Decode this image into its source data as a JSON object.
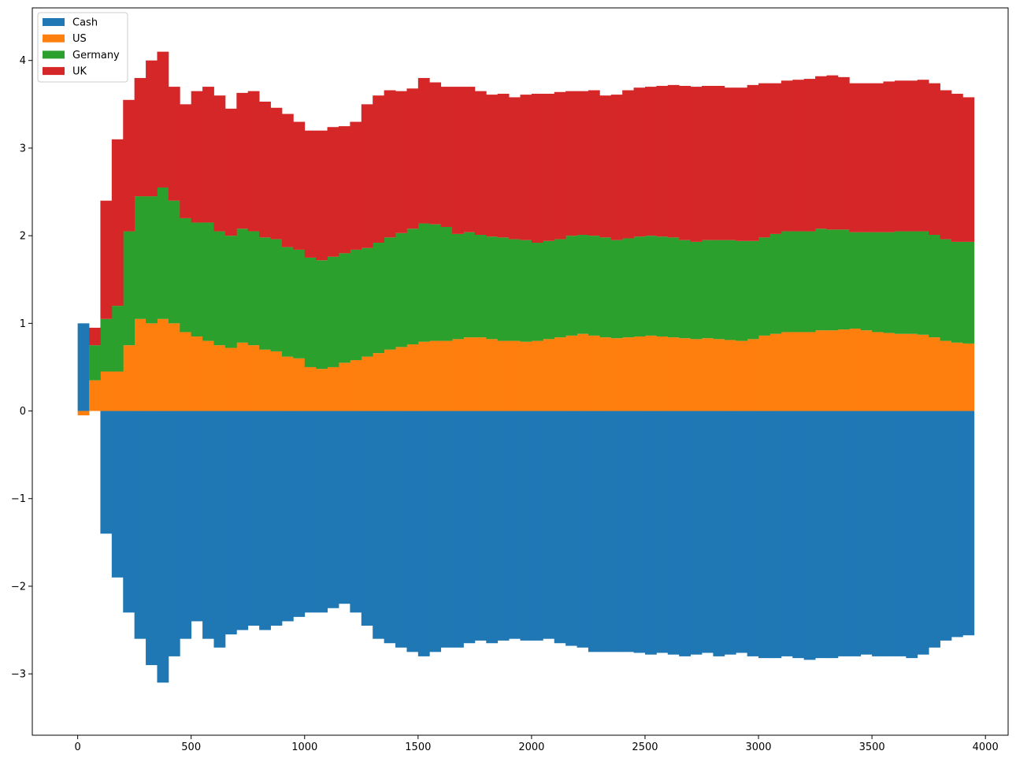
{
  "chart_data": {
    "type": "area",
    "subtype": "stacked bar chart (positive and negative stacks)",
    "title": "",
    "xlabel": "",
    "ylabel": "",
    "xlim": [
      -200,
      4100
    ],
    "ylim": [
      -3.7,
      4.6
    ],
    "x_ticks": [
      0,
      500,
      1000,
      1500,
      2000,
      2500,
      3000,
      3500,
      4000
    ],
    "y_ticks": [
      -3,
      -2,
      -1,
      0,
      1,
      2,
      3,
      4
    ],
    "y_tick_labels": [
      "−3",
      "−2",
      "−1",
      "0",
      "1",
      "2",
      "3",
      "4"
    ],
    "grid": false,
    "legend_position": "upper-left",
    "x_step": 50,
    "series": [
      {
        "name": "Cash",
        "color": "#1f77b4",
        "x": [
          0,
          50,
          100,
          150,
          200,
          250,
          300,
          350,
          400,
          450,
          500,
          550,
          600,
          650,
          700,
          750,
          800,
          850,
          900,
          950,
          1000,
          1050,
          1100,
          1150,
          1200,
          1250,
          1300,
          1350,
          1400,
          1450,
          1500,
          1550,
          1600,
          1650,
          1700,
          1750,
          1800,
          1850,
          1900,
          1950,
          2000,
          2050,
          2100,
          2150,
          2200,
          2250,
          2300,
          2350,
          2400,
          2450,
          2500,
          2550,
          2600,
          2650,
          2700,
          2750,
          2800,
          2850,
          2900,
          2950,
          3000,
          3050,
          3100,
          3150,
          3200,
          3250,
          3300,
          3350,
          3400,
          3450,
          3500,
          3550,
          3600,
          3650,
          3700,
          3750,
          3800,
          3850,
          3900
        ],
        "values": [
          1.0,
          0.0,
          -1.4,
          -1.9,
          -2.3,
          -2.6,
          -2.9,
          -3.1,
          -2.8,
          -2.6,
          -2.4,
          -2.6,
          -2.7,
          -2.55,
          -2.5,
          -2.45,
          -2.5,
          -2.45,
          -2.4,
          -2.35,
          -2.3,
          -2.3,
          -2.25,
          -2.2,
          -2.3,
          -2.45,
          -2.6,
          -2.65,
          -2.7,
          -2.75,
          -2.8,
          -2.75,
          -2.7,
          -2.7,
          -2.65,
          -2.62,
          -2.65,
          -2.62,
          -2.6,
          -2.62,
          -2.62,
          -2.6,
          -2.65,
          -2.68,
          -2.7,
          -2.75,
          -2.75,
          -2.75,
          -2.75,
          -2.76,
          -2.78,
          -2.76,
          -2.78,
          -2.8,
          -2.78,
          -2.76,
          -2.8,
          -2.78,
          -2.76,
          -2.8,
          -2.82,
          -2.82,
          -2.8,
          -2.82,
          -2.84,
          -2.82,
          -2.82,
          -2.8,
          -2.8,
          -2.78,
          -2.8,
          -2.8,
          -2.8,
          -2.82,
          -2.78,
          -2.7,
          -2.62,
          -2.58,
          -2.56
        ]
      },
      {
        "name": "US",
        "color": "#ff7f0e",
        "x": [
          0,
          50,
          100,
          150,
          200,
          250,
          300,
          350,
          400,
          450,
          500,
          550,
          600,
          650,
          700,
          750,
          800,
          850,
          900,
          950,
          1000,
          1050,
          1100,
          1150,
          1200,
          1250,
          1300,
          1350,
          1400,
          1450,
          1500,
          1550,
          1600,
          1650,
          1700,
          1750,
          1800,
          1850,
          1900,
          1950,
          2000,
          2050,
          2100,
          2150,
          2200,
          2250,
          2300,
          2350,
          2400,
          2450,
          2500,
          2550,
          2600,
          2650,
          2700,
          2750,
          2800,
          2850,
          2900,
          2950,
          3000,
          3050,
          3100,
          3150,
          3200,
          3250,
          3300,
          3350,
          3400,
          3450,
          3500,
          3550,
          3600,
          3650,
          3700,
          3750,
          3800,
          3850,
          3900
        ],
        "values": [
          -0.05,
          0.35,
          0.45,
          0.45,
          0.75,
          1.05,
          1.0,
          1.05,
          1.0,
          0.9,
          0.85,
          0.8,
          0.75,
          0.72,
          0.78,
          0.75,
          0.7,
          0.68,
          0.62,
          0.6,
          0.5,
          0.48,
          0.5,
          0.55,
          0.58,
          0.62,
          0.66,
          0.7,
          0.73,
          0.76,
          0.79,
          0.8,
          0.8,
          0.82,
          0.84,
          0.84,
          0.82,
          0.8,
          0.8,
          0.79,
          0.8,
          0.82,
          0.84,
          0.86,
          0.88,
          0.86,
          0.84,
          0.83,
          0.84,
          0.85,
          0.86,
          0.85,
          0.84,
          0.83,
          0.82,
          0.83,
          0.82,
          0.81,
          0.8,
          0.82,
          0.86,
          0.88,
          0.9,
          0.9,
          0.9,
          0.92,
          0.92,
          0.93,
          0.94,
          0.92,
          0.9,
          0.89,
          0.88,
          0.88,
          0.87,
          0.84,
          0.8,
          0.78,
          0.77
        ]
      },
      {
        "name": "Germany",
        "color": "#2ca02c",
        "x": [
          0,
          50,
          100,
          150,
          200,
          250,
          300,
          350,
          400,
          450,
          500,
          550,
          600,
          650,
          700,
          750,
          800,
          850,
          900,
          950,
          1000,
          1050,
          1100,
          1150,
          1200,
          1250,
          1300,
          1350,
          1400,
          1450,
          1500,
          1550,
          1600,
          1650,
          1700,
          1750,
          1800,
          1850,
          1900,
          1950,
          2000,
          2050,
          2100,
          2150,
          2200,
          2250,
          2300,
          2350,
          2400,
          2450,
          2500,
          2550,
          2600,
          2650,
          2700,
          2750,
          2800,
          2850,
          2900,
          2950,
          3000,
          3050,
          3100,
          3150,
          3200,
          3250,
          3300,
          3350,
          3400,
          3450,
          3500,
          3550,
          3600,
          3650,
          3700,
          3750,
          3800,
          3850,
          3900
        ],
        "values": [
          0.0,
          0.4,
          0.6,
          0.75,
          1.3,
          1.4,
          1.45,
          1.5,
          1.4,
          1.3,
          1.3,
          1.35,
          1.3,
          1.28,
          1.3,
          1.3,
          1.28,
          1.28,
          1.25,
          1.24,
          1.25,
          1.24,
          1.26,
          1.25,
          1.26,
          1.24,
          1.26,
          1.28,
          1.3,
          1.32,
          1.35,
          1.33,
          1.3,
          1.2,
          1.2,
          1.17,
          1.17,
          1.18,
          1.16,
          1.16,
          1.12,
          1.12,
          1.12,
          1.14,
          1.13,
          1.14,
          1.14,
          1.12,
          1.13,
          1.14,
          1.14,
          1.14,
          1.14,
          1.12,
          1.11,
          1.12,
          1.13,
          1.14,
          1.14,
          1.12,
          1.12,
          1.14,
          1.15,
          1.15,
          1.15,
          1.16,
          1.15,
          1.14,
          1.1,
          1.12,
          1.14,
          1.15,
          1.17,
          1.17,
          1.18,
          1.17,
          1.16,
          1.15,
          1.16
        ]
      },
      {
        "name": "UK",
        "color": "#d62728",
        "x": [
          0,
          50,
          100,
          150,
          200,
          250,
          300,
          350,
          400,
          450,
          500,
          550,
          600,
          650,
          700,
          750,
          800,
          850,
          900,
          950,
          1000,
          1050,
          1100,
          1150,
          1200,
          1250,
          1300,
          1350,
          1400,
          1450,
          1500,
          1550,
          1600,
          1650,
          1700,
          1750,
          1800,
          1850,
          1900,
          1950,
          2000,
          2050,
          2100,
          2150,
          2200,
          2250,
          2300,
          2350,
          2400,
          2450,
          2500,
          2550,
          2600,
          2650,
          2700,
          2750,
          2800,
          2850,
          2900,
          2950,
          3000,
          3050,
          3100,
          3150,
          3200,
          3250,
          3300,
          3350,
          3400,
          3450,
          3500,
          3550,
          3600,
          3650,
          3700,
          3750,
          3800,
          3850,
          3900
        ],
        "values": [
          0.0,
          0.2,
          1.35,
          1.9,
          1.5,
          1.35,
          1.55,
          1.55,
          1.3,
          1.3,
          1.5,
          1.55,
          1.55,
          1.45,
          1.55,
          1.6,
          1.55,
          1.5,
          1.52,
          1.46,
          1.45,
          1.48,
          1.48,
          1.45,
          1.46,
          1.64,
          1.68,
          1.68,
          1.62,
          1.6,
          1.66,
          1.62,
          1.6,
          1.68,
          1.66,
          1.64,
          1.62,
          1.64,
          1.62,
          1.66,
          1.7,
          1.68,
          1.68,
          1.65,
          1.64,
          1.66,
          1.62,
          1.66,
          1.69,
          1.7,
          1.7,
          1.72,
          1.74,
          1.76,
          1.77,
          1.76,
          1.76,
          1.74,
          1.75,
          1.78,
          1.76,
          1.72,
          1.72,
          1.73,
          1.74,
          1.74,
          1.76,
          1.74,
          1.7,
          1.7,
          1.7,
          1.72,
          1.72,
          1.72,
          1.73,
          1.73,
          1.7,
          1.69,
          1.65
        ]
      }
    ]
  }
}
